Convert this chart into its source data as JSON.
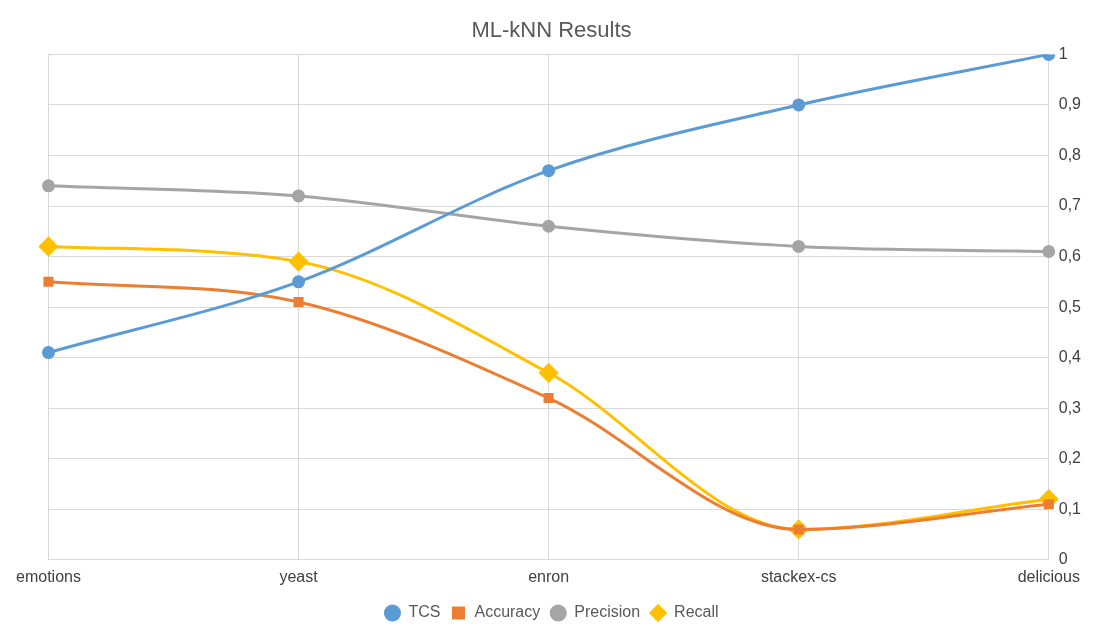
{
  "chart_data": {
    "type": "line",
    "title": "ML-kNN Results",
    "categories": [
      "emotions",
      "yeast",
      "enron",
      "stackex-cs",
      "delicious"
    ],
    "series": [
      {
        "name": "TCS",
        "color": "#5b9bd5",
        "marker": "circle",
        "values": [
          0.41,
          0.55,
          0.77,
          0.9,
          1.0
        ]
      },
      {
        "name": "Accuracy",
        "color": "#ed7d31",
        "marker": "square",
        "values": [
          0.55,
          0.51,
          0.32,
          0.06,
          0.11
        ]
      },
      {
        "name": "Precision",
        "color": "#a5a5a5",
        "marker": "circle",
        "values": [
          0.74,
          0.72,
          0.66,
          0.62,
          0.61
        ]
      },
      {
        "name": "Recall",
        "color": "#ffc000",
        "marker": "diamond",
        "values": [
          0.62,
          0.59,
          0.37,
          0.06,
          0.12
        ]
      }
    ],
    "ylim": [
      0,
      1
    ],
    "yticks": [
      {
        "value": 0,
        "label": "0"
      },
      {
        "value": 0.1,
        "label": "0,1"
      },
      {
        "value": 0.2,
        "label": "0,2"
      },
      {
        "value": 0.3,
        "label": "0,3"
      },
      {
        "value": 0.4,
        "label": "0,4"
      },
      {
        "value": 0.5,
        "label": "0,5"
      },
      {
        "value": 0.6,
        "label": "0,6"
      },
      {
        "value": 0.7,
        "label": "0,7"
      },
      {
        "value": 0.8,
        "label": "0,8"
      },
      {
        "value": 0.9,
        "label": "0,9"
      },
      {
        "value": 1,
        "label": "1"
      }
    ],
    "grid": true,
    "legend": "bottom"
  }
}
